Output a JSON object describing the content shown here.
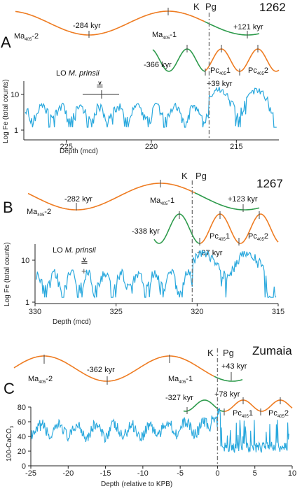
{
  "colors": {
    "data": "#29a8dd",
    "orange": "#ee7c22",
    "green": "#2e9b4c",
    "kpb": "#777777"
  },
  "chart_data": [
    {
      "type": "line",
      "panel": "A",
      "site": "1262",
      "ylabel": "Log Fe (total counts)",
      "xlabel": "Depth (mcd)",
      "x_reversed": true,
      "xlim": [
        227.5,
        212.5
      ],
      "x_ticks": [
        225,
        220,
        215
      ],
      "y_log": true,
      "y_ticks": [
        1,
        10
      ],
      "kpb_depth": 216.6,
      "lo_label_prefix": "LO",
      "lo_label_species": "M. prinsii",
      "lo_depth": 222.8,
      "lo_range": [
        224.7,
        221.3
      ],
      "upper_labels": [
        {
          "text": "-284 kyr",
          "depth": 222.7
        },
        {
          "text": "+121 kyr",
          "depth": 213.6
        }
      ],
      "upper_cycle_labels": [
        {
          "main": "Ma",
          "sub": "405",
          "suffix": "-2"
        },
        {
          "main": "Ma",
          "sub": "405",
          "suffix": "-1"
        }
      ],
      "lower_labels": [
        {
          "text": "-366 kyr"
        },
        {
          "text": "+39 kyr"
        }
      ],
      "lower_cycle_labels": [
        {
          "main": "Pc",
          "sub": "405",
          "suffix": "1"
        },
        {
          "main": "Pc",
          "sub": "405",
          "suffix": "2"
        }
      ],
      "kpg_labels": [
        "K",
        "Pg"
      ]
    },
    {
      "type": "line",
      "panel": "B",
      "site": "1267",
      "ylabel": "Log Fe (total counts)",
      "xlabel": "Depth (mcd)",
      "x_reversed": true,
      "xlim": [
        330,
        315
      ],
      "x_ticks": [
        330,
        325,
        320,
        315
      ],
      "y_log": true,
      "y_ticks": [
        1,
        10
      ],
      "kpb_depth": 320.3,
      "lo_label_prefix": "LO",
      "lo_label_species": "M. prinsii",
      "lo_depth": 327,
      "upper_labels": [
        {
          "text": "-282 kyr",
          "depth": 327.3
        },
        {
          "text": "+123 kyr",
          "depth": 316.8
        }
      ],
      "upper_cycle_labels": [
        {
          "main": "Ma",
          "sub": "405",
          "suffix": "-2"
        },
        {
          "main": "Ma",
          "sub": "405",
          "suffix": "-1"
        }
      ],
      "lower_labels": [
        {
          "text": "-338 kyr"
        },
        {
          "text": "+67 kyr"
        }
      ],
      "lower_cycle_labels": [
        {
          "main": "Pc",
          "sub": "405",
          "suffix": "1"
        },
        {
          "main": "Pc",
          "sub": "405",
          "suffix": "2"
        }
      ],
      "kpg_labels": [
        "K",
        "Pg"
      ]
    },
    {
      "type": "line",
      "panel": "C",
      "site": "Zumaia",
      "ylabel": "100-CaCO",
      "ylabel_sub": "3",
      "xlabel": "Depth (relative to KPB)",
      "xlim": [
        -25,
        10
      ],
      "x_ticks": [
        -25,
        -20,
        -15,
        -10,
        -5,
        0,
        5,
        10
      ],
      "ylim": [
        0,
        80
      ],
      "y_ticks": [
        0,
        20,
        40,
        60,
        80
      ],
      "kpb_depth": 0,
      "upper_labels": [
        {
          "text": "-362 kyr",
          "depth": -15
        },
        {
          "text": "+43 kyr",
          "depth": 1.8
        }
      ],
      "upper_cycle_labels": [
        {
          "main": "Ma",
          "sub": "405",
          "suffix": "-2"
        },
        {
          "main": "Ma",
          "sub": "405",
          "suffix": "-1"
        }
      ],
      "lower_labels": [
        {
          "text": "-327 kyr"
        },
        {
          "text": "+78 kyr"
        }
      ],
      "lower_cycle_labels": [
        {
          "main": "Pc",
          "sub": "405",
          "suffix": "1"
        },
        {
          "main": "Pc",
          "sub": "405",
          "suffix": "2"
        }
      ],
      "kpg_labels": [
        "K",
        "Pg"
      ]
    }
  ]
}
